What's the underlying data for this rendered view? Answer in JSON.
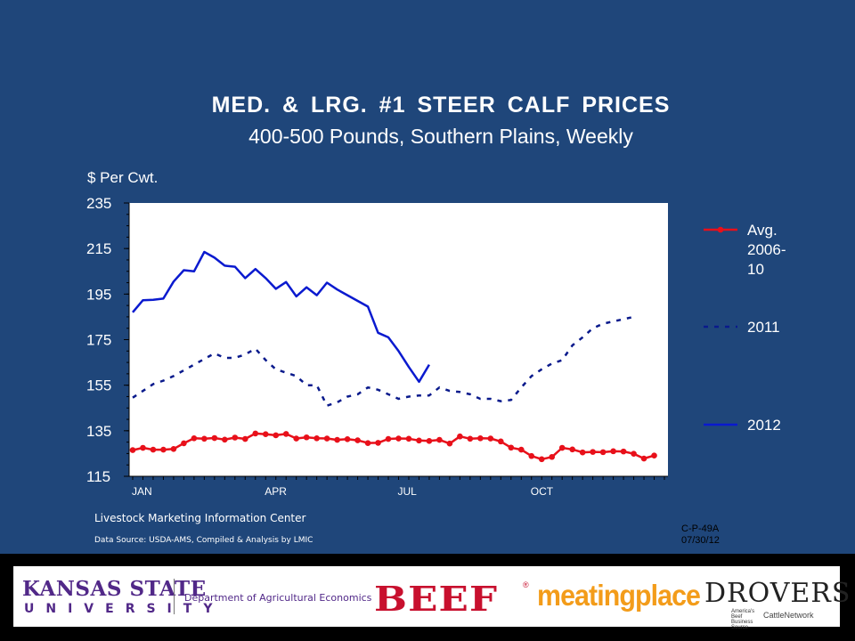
{
  "chart_data": {
    "type": "line",
    "title": "MED.  &  LRG.  #1  STEER  CALF  PRICES",
    "subtitle": "400-500 Pounds, Southern Plains, Weekly",
    "ylabel": "$ Per Cwt.",
    "ylim": [
      115,
      235
    ],
    "yticks": [
      "235",
      "215",
      "195",
      "175",
      "155",
      "135",
      "115"
    ],
    "xlim": [
      0,
      52
    ],
    "xticks": [
      {
        "label": "JAN",
        "week": 0
      },
      {
        "label": "APR",
        "week": 13
      },
      {
        "label": "JUL",
        "week": 26
      },
      {
        "label": "OCT",
        "week": 39
      }
    ],
    "legend_placement": "right",
    "series": [
      {
        "name": "Avg. 2006-10",
        "legend_lines": [
          "Avg.",
          "2006-",
          "10"
        ],
        "color": "#E8101A",
        "style": "solid-markers",
        "values": [
          126.5,
          127.5,
          126.7,
          126.7,
          127,
          129.5,
          131.7,
          131.5,
          131.8,
          131.1,
          132,
          131.4,
          133.8,
          133.5,
          133,
          133.6,
          131.6,
          132.1,
          131.7,
          131.6,
          131,
          131.3,
          130.8,
          129.6,
          129.7,
          131.4,
          131.6,
          131.5,
          130.7,
          130.5,
          131,
          129.4,
          132.5,
          131.5,
          131.7,
          131.6,
          130.3,
          127.6,
          126.7,
          123.9,
          122.5,
          123.5,
          127.5,
          126.8,
          125.5,
          125.7,
          125.6,
          126,
          125.9,
          124.9,
          122.8,
          124.1
        ]
      },
      {
        "name": "2011",
        "legend_lines": [
          "2011"
        ],
        "color": "#0A1A8C",
        "style": "dashed",
        "values": [
          149.5,
          152.5,
          155.5,
          157,
          159,
          161.5,
          164,
          166.5,
          169,
          167,
          167,
          168.5,
          171,
          166,
          162,
          160.5,
          159,
          155,
          155,
          146,
          147.5,
          150,
          151,
          154,
          153,
          151,
          149,
          150,
          150.5,
          150.5,
          154,
          152.5,
          152,
          151,
          149,
          149,
          148,
          148.5,
          154,
          159,
          162,
          164.5,
          166,
          172.5,
          176,
          180,
          182,
          183,
          184,
          185
        ]
      },
      {
        "name": "2012",
        "legend_lines": [
          "2012"
        ],
        "color": "#0A1ACF",
        "style": "solid",
        "values": [
          187,
          192.3,
          192.5,
          193,
          200.5,
          205.5,
          205,
          213.5,
          211,
          207.5,
          207,
          202,
          206,
          202,
          197.3,
          200.3,
          194,
          198,
          194.5,
          200,
          197,
          194.5,
          192,
          189.5,
          178,
          176,
          170,
          163,
          156.5,
          164
        ]
      }
    ]
  },
  "source": {
    "org": "Livestock Marketing Information Center",
    "data": "Data Source:  USDA-AMS, Compiled & Analysis by LMIC"
  },
  "code": {
    "id": "C-P-49A",
    "date": "07/30/12"
  },
  "logos": {
    "ksu_line1": "KANSAS STATE",
    "ksu_line2": "UNIVERSITY",
    "department": "Department of Agricultural Economics",
    "beef": "BEEF",
    "beef_reg": "®",
    "meatingplace": "meatingplace",
    "drovers": "DROVERS",
    "drovers_tag": "America's Beef Business Source",
    "drovers_network": "CattleNetwork"
  }
}
